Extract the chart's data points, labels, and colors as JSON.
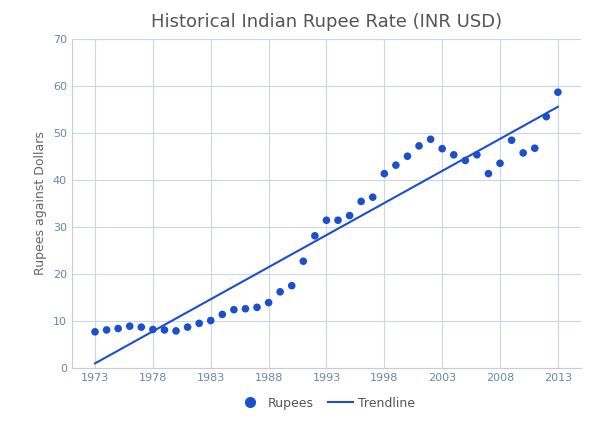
{
  "title": "Historical Indian Rupee Rate (INR USD)",
  "xlabel": "",
  "ylabel": "Rupees against Dollars",
  "background_color": "#ffffff",
  "grid_color": "#ccd6e8",
  "xlim": [
    1971,
    2015
  ],
  "ylim": [
    0,
    70
  ],
  "xticks": [
    1973,
    1978,
    1983,
    1988,
    1993,
    1998,
    2003,
    2008,
    2013
  ],
  "yticks": [
    0,
    10,
    20,
    30,
    40,
    50,
    60,
    70
  ],
  "years": [
    1973,
    1974,
    1975,
    1976,
    1977,
    1978,
    1979,
    1980,
    1981,
    1982,
    1983,
    1984,
    1985,
    1986,
    1987,
    1988,
    1989,
    1990,
    1991,
    1992,
    1993,
    1994,
    1995,
    1996,
    1997,
    1998,
    1999,
    2000,
    2001,
    2002,
    2003,
    2004,
    2005,
    2006,
    2007,
    2008,
    2009,
    2010,
    2011,
    2012,
    2013
  ],
  "rupees": [
    7.7,
    8.1,
    8.4,
    8.9,
    8.7,
    8.2,
    8.1,
    7.9,
    8.7,
    9.5,
    10.1,
    11.4,
    12.4,
    12.6,
    12.9,
    13.9,
    16.2,
    17.5,
    22.7,
    28.1,
    31.4,
    31.4,
    32.4,
    35.4,
    36.3,
    41.3,
    43.1,
    45.0,
    47.2,
    48.6,
    46.6,
    45.3,
    44.1,
    45.3,
    41.3,
    43.5,
    48.4,
    45.7,
    46.7,
    53.4,
    58.6
  ],
  "trendline_x": [
    1973,
    2013
  ],
  "trendline_y": [
    1.0,
    55.5
  ],
  "dot_color": "#1a50cc",
  "dot_size": 30,
  "line_color": "#1a50cc",
  "line_width": 1.5,
  "title_color": "#555555",
  "title_fontsize": 13,
  "axis_label_fontsize": 9,
  "tick_fontsize": 8,
  "tick_color": "#6688aa",
  "legend_fontsize": 9
}
